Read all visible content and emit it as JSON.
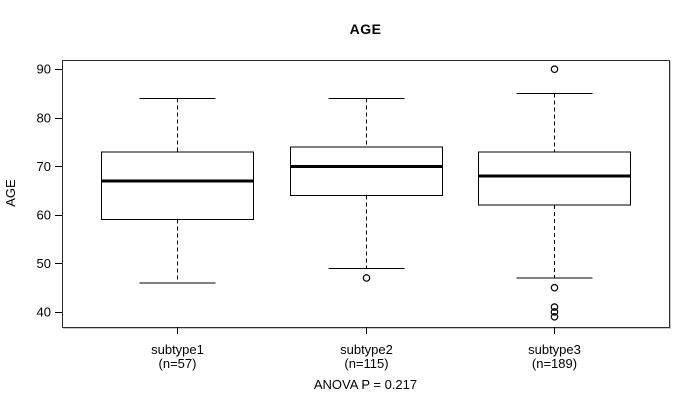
{
  "window": {
    "background": "#ffffff"
  },
  "chart_data": {
    "type": "boxplot",
    "title": "AGE",
    "ylabel": "AGE",
    "xlabel": "",
    "annotation": "ANOVA P = 0.217",
    "yticks": [
      40,
      50,
      60,
      70,
      80,
      90
    ],
    "ylim": [
      36.9,
      91.9
    ],
    "grid": false,
    "groups": [
      {
        "label": "subtype1",
        "sublabel": "(n=57)",
        "n": 57,
        "whisker_low": 46,
        "q1": 59,
        "median": 67,
        "q3": 73,
        "whisker_high": 84,
        "outliers": []
      },
      {
        "label": "subtype2",
        "sublabel": "(n=115)",
        "n": 115,
        "whisker_low": 49,
        "q1": 64,
        "median": 70,
        "q3": 74,
        "whisker_high": 84,
        "outliers": [
          47
        ]
      },
      {
        "label": "subtype3",
        "sublabel": "(n=189)",
        "n": 189,
        "whisker_low": 47,
        "q1": 62,
        "median": 68,
        "q3": 73,
        "whisker_high": 85,
        "outliers": [
          90,
          45,
          41,
          40,
          39
        ]
      }
    ],
    "colors": {
      "line": "#000000",
      "box_fill": "#ffffff",
      "frame": "#2e2e2e",
      "background": "#ffffff",
      "text": "#000000"
    }
  }
}
